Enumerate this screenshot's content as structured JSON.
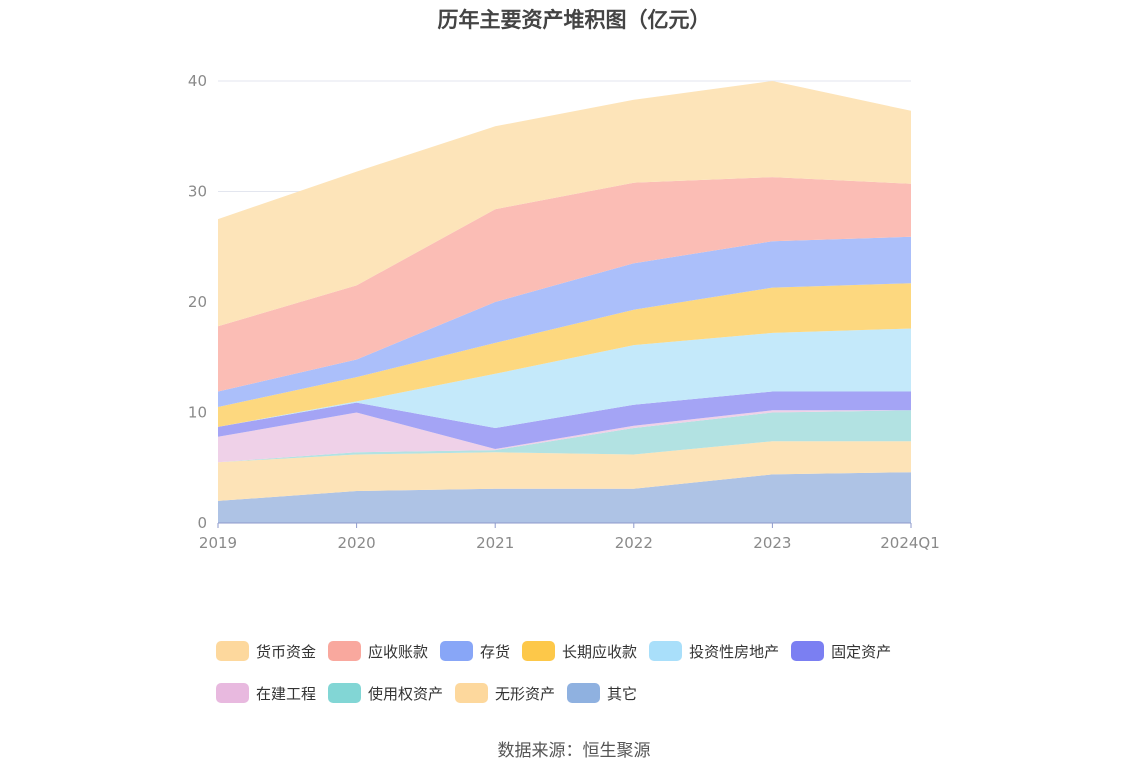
{
  "chart_data": {
    "type": "area",
    "stacked": true,
    "title": "历年主要资产堆积图（亿元）",
    "categories": [
      "2019",
      "2020",
      "2021",
      "2022",
      "2023",
      "2024Q1"
    ],
    "ylim": [
      0,
      40
    ],
    "yticks": [
      0,
      10,
      20,
      30,
      40
    ],
    "grid": true,
    "legend_position": "bottom",
    "series": [
      {
        "name": "其它",
        "color": "#aec3e5",
        "legend_color": "#8fb1e0",
        "values": [
          2.0,
          2.9,
          3.1,
          3.1,
          4.4,
          4.6
        ]
      },
      {
        "name": "无形资产",
        "color": "#fde3b7",
        "legend_color": "#fdd89d",
        "values": [
          3.5,
          3.3,
          3.3,
          3.1,
          3.0,
          2.8
        ]
      },
      {
        "name": "使用权资产",
        "color": "#b2e2e2",
        "legend_color": "#82d6d5",
        "values": [
          0.0,
          0.2,
          0.2,
          2.4,
          2.6,
          2.8
        ]
      },
      {
        "name": "在建工程",
        "color": "#efd1e8",
        "legend_color": "#e8b9df",
        "values": [
          2.3,
          3.6,
          0.1,
          0.2,
          0.2,
          0.0
        ]
      },
      {
        "name": "固定资产",
        "color": "#a4a4f5",
        "legend_color": "#7b7ff2",
        "values": [
          0.9,
          0.9,
          1.9,
          1.9,
          1.7,
          1.7
        ]
      },
      {
        "name": "投资性房地产",
        "color": "#c4e9fa",
        "legend_color": "#a9dffa",
        "values": [
          0.0,
          0.1,
          4.9,
          5.4,
          5.3,
          5.7
        ]
      },
      {
        "name": "长期应收款",
        "color": "#fdd87f",
        "legend_color": "#fdc849",
        "values": [
          1.8,
          2.2,
          2.8,
          3.2,
          4.1,
          4.1
        ]
      },
      {
        "name": "存货",
        "color": "#abbffa",
        "legend_color": "#88a6f7",
        "values": [
          1.4,
          1.6,
          3.7,
          4.2,
          4.2,
          4.2
        ]
      },
      {
        "name": "应收账款",
        "color": "#fbbdb5",
        "legend_color": "#f9a89e",
        "values": [
          5.9,
          6.7,
          8.4,
          7.3,
          5.8,
          4.8
        ]
      },
      {
        "name": "货币资金",
        "color": "#fde4b9",
        "legend_color": "#fdd89d",
        "values": [
          9.7,
          10.3,
          7.5,
          7.5,
          8.7,
          6.6
        ]
      }
    ]
  },
  "legend_items": [
    {
      "label": "货币资金",
      "color": "#fdd89d"
    },
    {
      "label": "应收账款",
      "color": "#f9a89e"
    },
    {
      "label": "存货",
      "color": "#88a6f7"
    },
    {
      "label": "长期应收款",
      "color": "#fdc849"
    },
    {
      "label": "投资性房地产",
      "color": "#a9dffa"
    },
    {
      "label": "固定资产",
      "color": "#7b7ff2"
    },
    {
      "label": "在建工程",
      "color": "#e8b9df"
    },
    {
      "label": "使用权资产",
      "color": "#82d6d5"
    },
    {
      "label": "无形资产",
      "color": "#fdd89d"
    },
    {
      "label": "其它",
      "color": "#8fb1e0"
    }
  ],
  "source": "数据来源：恒生聚源",
  "colors": {
    "grid": "#e3e6ef",
    "axis": "#8e9acb",
    "tick_text": "#8a8a8a"
  }
}
